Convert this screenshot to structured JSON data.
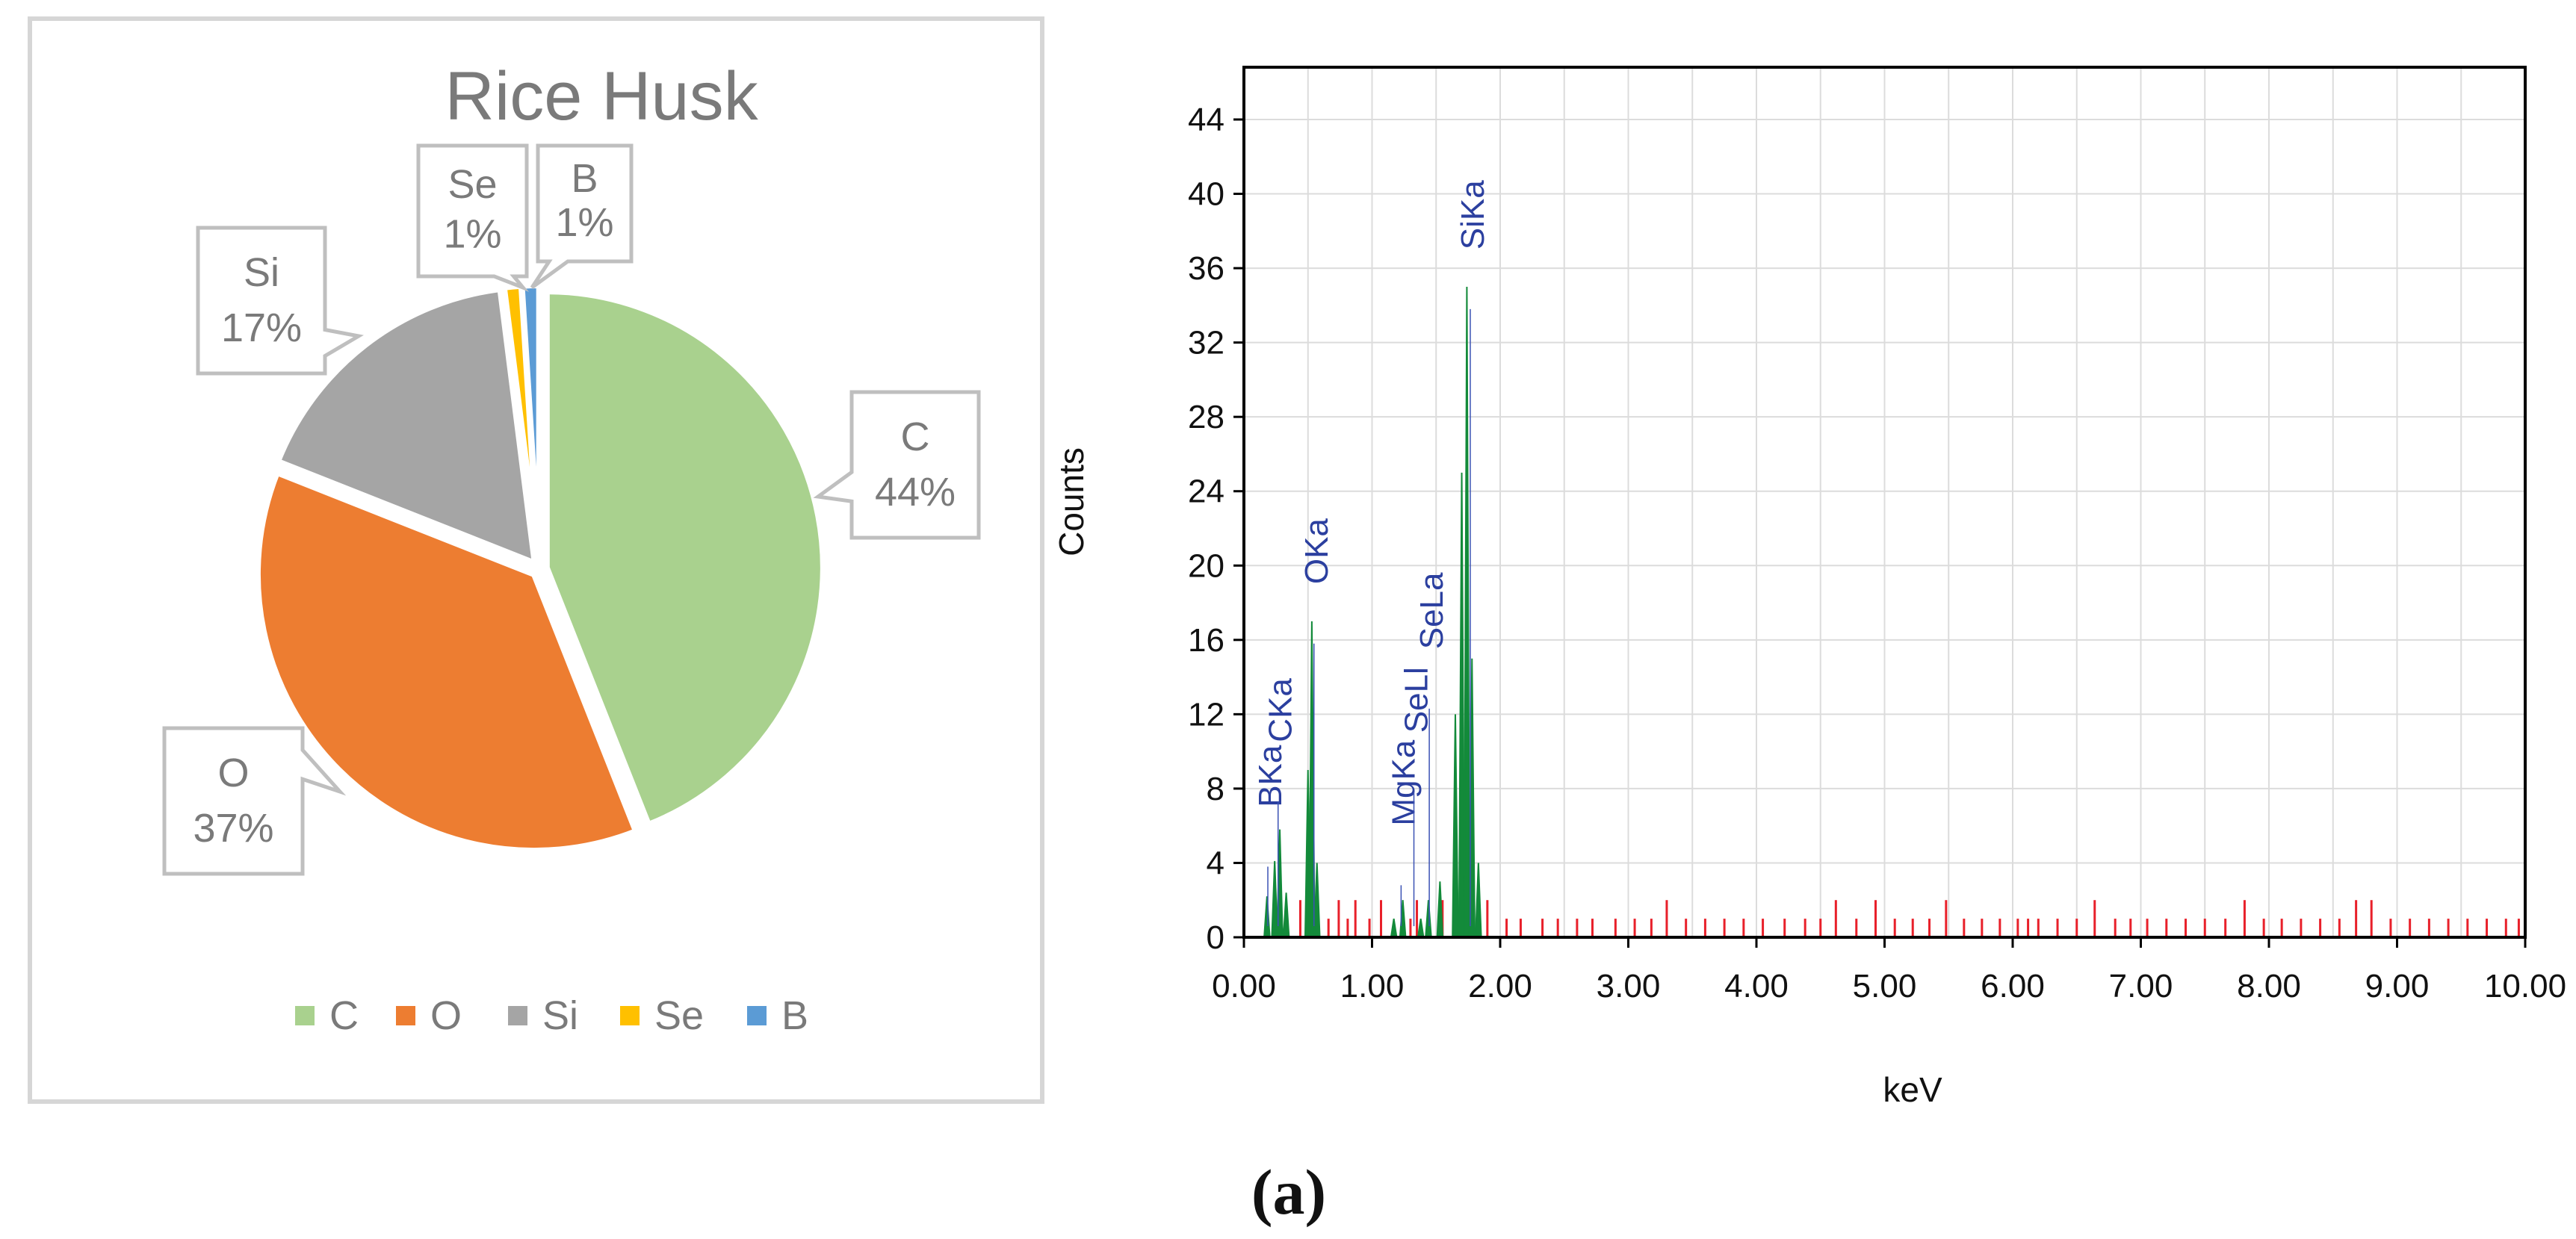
{
  "figure_label": "(a)",
  "colors": {
    "C": "#A9D18E",
    "O": "#ED7D31",
    "Si": "#A5A5A5",
    "Se": "#FFC000",
    "B": "#5B9BD5",
    "spectrum_fill": "#138a3a",
    "spectrum_noise": "#e8202a",
    "peak_label": "#2b3f9f",
    "baseline": "#8fa832"
  },
  "chart_data": [
    {
      "type": "pie",
      "title": "Rice Husk",
      "slices": [
        {
          "label": "C",
          "value": 44,
          "display": "44%"
        },
        {
          "label": "O",
          "value": 37,
          "display": "37%"
        },
        {
          "label": "Si",
          "value": 17,
          "display": "17%"
        },
        {
          "label": "Se",
          "value": 1,
          "display": "1%"
        },
        {
          "label": "B",
          "value": 1,
          "display": "1%"
        }
      ],
      "legend": [
        "C",
        "O",
        "Si",
        "Se",
        "B"
      ],
      "legend_position": "bottom"
    },
    {
      "type": "area",
      "title": "",
      "xlabel": "keV",
      "ylabel": "Counts",
      "xlim": [
        0,
        10
      ],
      "ylim": [
        0,
        46
      ],
      "xticks": [
        "0.00",
        "1.00",
        "2.00",
        "3.00",
        "4.00",
        "5.00",
        "6.00",
        "7.00",
        "8.00",
        "9.00",
        "10.00"
      ],
      "yticks": [
        "0",
        "4",
        "8",
        "12",
        "16",
        "20",
        "24",
        "28",
        "32",
        "36",
        "40",
        "44"
      ],
      "grid": true,
      "series": [
        {
          "peaks": [
            {
              "x": 0.18,
              "y": 2.2
            },
            {
              "x": 0.24,
              "y": 4.1
            },
            {
              "x": 0.28,
              "y": 5.8
            },
            {
              "x": 0.33,
              "y": 2.4
            },
            {
              "x": 0.5,
              "y": 9
            },
            {
              "x": 0.53,
              "y": 17
            },
            {
              "x": 0.57,
              "y": 4
            },
            {
              "x": 1.17,
              "y": 1
            },
            {
              "x": 1.24,
              "y": 2
            },
            {
              "x": 1.38,
              "y": 1
            },
            {
              "x": 1.44,
              "y": 2
            },
            {
              "x": 1.53,
              "y": 3
            },
            {
              "x": 1.65,
              "y": 12
            },
            {
              "x": 1.7,
              "y": 25
            },
            {
              "x": 1.74,
              "y": 35
            },
            {
              "x": 1.78,
              "y": 15
            },
            {
              "x": 1.83,
              "y": 4
            }
          ],
          "noise": [
            [
              0.44,
              2
            ],
            [
              0.66,
              1
            ],
            [
              0.74,
              2
            ],
            [
              0.81,
              1
            ],
            [
              0.87,
              2
            ],
            [
              0.98,
              1
            ],
            [
              1.07,
              2
            ],
            [
              1.3,
              1
            ],
            [
              1.35,
              2
            ],
            [
              1.55,
              2
            ],
            [
              1.9,
              2
            ],
            [
              2.05,
              1
            ],
            [
              2.16,
              1
            ],
            [
              2.33,
              1
            ],
            [
              2.45,
              1
            ],
            [
              2.6,
              1
            ],
            [
              2.72,
              1
            ],
            [
              2.9,
              1
            ],
            [
              3.05,
              1
            ],
            [
              3.18,
              1
            ],
            [
              3.3,
              2
            ],
            [
              3.45,
              1
            ],
            [
              3.6,
              1
            ],
            [
              3.75,
              1
            ],
            [
              3.9,
              1
            ],
            [
              4.05,
              1
            ],
            [
              4.22,
              1
            ],
            [
              4.38,
              1
            ],
            [
              4.5,
              1
            ],
            [
              4.62,
              2
            ],
            [
              4.78,
              1
            ],
            [
              4.93,
              2
            ],
            [
              5.08,
              1
            ],
            [
              5.22,
              1
            ],
            [
              5.35,
              1
            ],
            [
              5.48,
              2
            ],
            [
              5.62,
              1
            ],
            [
              5.76,
              1
            ],
            [
              5.9,
              1
            ],
            [
              6.04,
              1
            ],
            [
              6.12,
              1
            ],
            [
              6.2,
              1
            ],
            [
              6.35,
              1
            ],
            [
              6.5,
              1
            ],
            [
              6.64,
              2
            ],
            [
              6.8,
              1
            ],
            [
              6.92,
              1
            ],
            [
              7.05,
              1
            ],
            [
              7.2,
              1
            ],
            [
              7.35,
              1
            ],
            [
              7.5,
              1
            ],
            [
              7.66,
              1
            ],
            [
              7.81,
              2
            ],
            [
              7.96,
              1
            ],
            [
              8.1,
              1
            ],
            [
              8.25,
              1
            ],
            [
              8.4,
              1
            ],
            [
              8.55,
              1
            ],
            [
              8.68,
              2
            ],
            [
              8.8,
              2
            ],
            [
              8.95,
              1
            ],
            [
              9.1,
              1
            ],
            [
              9.25,
              1
            ],
            [
              9.4,
              1
            ],
            [
              9.55,
              1
            ],
            [
              9.7,
              1
            ],
            [
              9.85,
              1
            ],
            [
              9.95,
              1
            ]
          ]
        }
      ],
      "annotations": [
        {
          "text": "BKa",
          "x": 0.21,
          "y": 7
        },
        {
          "text": "CKa",
          "x": 0.29,
          "y": 10.5
        },
        {
          "text": "OKa",
          "x": 0.57,
          "y": 19
        },
        {
          "text": "MgKa",
          "x": 1.25,
          "y": 6
        },
        {
          "text": "SeLl",
          "x": 1.35,
          "y": 11
        },
        {
          "text": "SeLa",
          "x": 1.47,
          "y": 15.5
        },
        {
          "text": "SiKa",
          "x": 1.79,
          "y": 37
        }
      ]
    }
  ]
}
